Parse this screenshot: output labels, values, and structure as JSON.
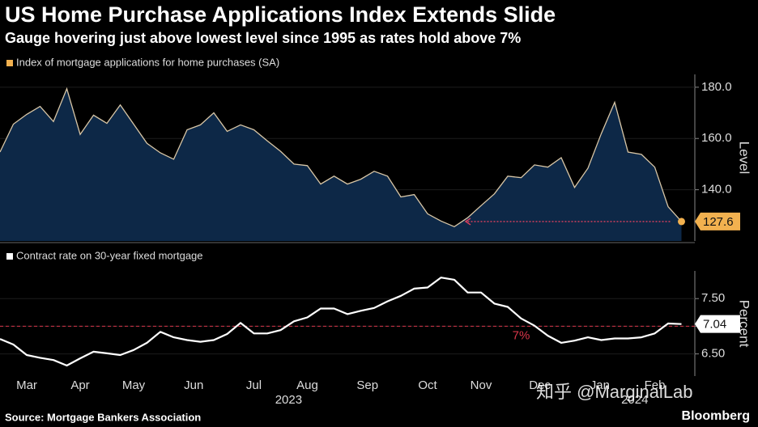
{
  "title": "US Home Purchase Applications Index Extends Slide",
  "subtitle": "Gauge hovering just above lowest level since 1995 as rates hold above 7%",
  "source": "Source: Mortgage Bankers Association",
  "credit": "Bloomberg",
  "watermark": "知乎 @MarginalLab",
  "chart_data": [
    {
      "type": "area",
      "series": [
        {
          "name": "Index of mortgage applications for home purchases (SA)",
          "color": "#f2b14f",
          "line_color": "#d8c6a6",
          "fill": "#0d2847",
          "values": [
            154.7,
            165.6,
            169.4,
            172.5,
            166.6,
            179.4,
            161.6,
            169.1,
            165.9,
            173.1,
            165.6,
            158.1,
            154.4,
            151.9,
            163.4,
            165.3,
            170.0,
            162.8,
            165.3,
            163.4,
            159.1,
            155.0,
            150.0,
            149.4,
            142.2,
            145.3,
            142.2,
            144.1,
            147.2,
            145.3,
            137.2,
            138.1,
            130.6,
            127.8,
            125.6,
            129.1,
            133.8,
            138.4,
            145.3,
            144.7,
            149.7,
            148.8,
            152.5,
            140.9,
            148.4,
            161.9,
            174.1,
            154.7,
            153.8,
            148.8,
            133.4,
            127.6
          ]
        }
      ],
      "x": [
        0,
        1,
        2,
        3,
        4,
        5,
        6,
        7,
        8,
        9,
        10,
        11,
        12,
        13,
        14,
        15,
        16,
        17,
        18,
        19,
        20,
        21,
        22,
        23,
        24,
        25,
        26,
        27,
        28,
        29,
        30,
        31,
        32,
        33,
        34,
        35,
        36,
        37,
        38,
        39,
        40,
        41,
        42,
        43,
        44,
        45,
        46,
        47,
        48,
        49,
        50,
        51
      ],
      "xlim": [
        0,
        52
      ],
      "ylim": [
        120,
        185
      ],
      "yticks": [
        {
          "value": 140,
          "label": "140.0"
        },
        {
          "value": 160,
          "label": "160.0"
        },
        {
          "value": 180,
          "label": "180.0"
        }
      ],
      "axis_label": "Level",
      "end_label": "127.6",
      "arrow_color": "#e0405e",
      "grid": true
    },
    {
      "type": "line",
      "series": [
        {
          "name": "Contract rate on 30-year fixed mortgage",
          "color": "#ffffff",
          "values": [
            6.77,
            6.67,
            6.48,
            6.43,
            6.39,
            6.29,
            6.42,
            6.54,
            6.51,
            6.48,
            6.57,
            6.7,
            6.9,
            6.8,
            6.75,
            6.72,
            6.75,
            6.86,
            7.06,
            6.87,
            6.87,
            6.93,
            7.09,
            7.16,
            7.32,
            7.32,
            7.22,
            7.28,
            7.33,
            7.45,
            7.55,
            7.68,
            7.7,
            7.88,
            7.84,
            7.61,
            7.61,
            7.41,
            7.35,
            7.14,
            7.01,
            6.83,
            6.7,
            6.74,
            6.8,
            6.75,
            6.78,
            6.78,
            6.8,
            6.87,
            7.05,
            7.04
          ]
        }
      ],
      "x": [
        0,
        1,
        2,
        3,
        4,
        5,
        6,
        7,
        8,
        9,
        10,
        11,
        12,
        13,
        14,
        15,
        16,
        17,
        18,
        19,
        20,
        21,
        22,
        23,
        24,
        25,
        26,
        27,
        28,
        29,
        30,
        31,
        32,
        33,
        34,
        35,
        36,
        37,
        38,
        39,
        40,
        41,
        42,
        43,
        44,
        45,
        46,
        47,
        48,
        49,
        50,
        51
      ],
      "xlim": [
        0,
        52
      ],
      "ylim": [
        6.1,
        8.0
      ],
      "yticks": [
        {
          "value": 6.5,
          "label": "6.50"
        },
        {
          "value": 7.0,
          "label": "7.00"
        },
        {
          "value": 7.5,
          "label": "7.50"
        }
      ],
      "xticks": [
        {
          "value": 2.0,
          "label": "Mar"
        },
        {
          "value": 6.0,
          "label": "Apr"
        },
        {
          "value": 10.0,
          "label": "May"
        },
        {
          "value": 14.5,
          "label": "Jun"
        },
        {
          "value": 19.0,
          "label": "Jul"
        },
        {
          "value": 23.0,
          "label": "Aug"
        },
        {
          "value": 27.5,
          "label": "Sep"
        },
        {
          "value": 32.0,
          "label": "Oct"
        },
        {
          "value": 36.0,
          "label": "Nov"
        },
        {
          "value": 40.4,
          "label": "Dec"
        },
        {
          "value": 44.9,
          "label": "Jan"
        },
        {
          "value": 49.0,
          "label": "Feb"
        }
      ],
      "annotations": [
        {
          "x": 21.6,
          "text": "2023"
        },
        {
          "x": 47.5,
          "text": "2024"
        }
      ],
      "axis_label": "Percent",
      "end_label": "7.04",
      "reference": {
        "value": 7,
        "label": "7%",
        "color": "#d9364a"
      },
      "grid": true
    }
  ]
}
